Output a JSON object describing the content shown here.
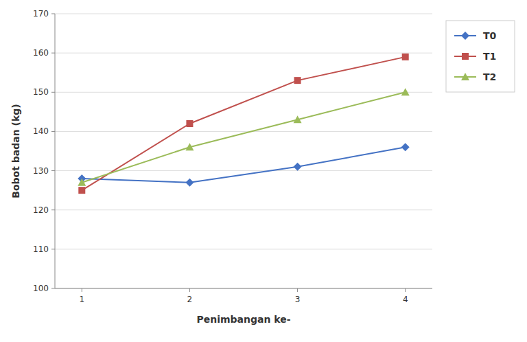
{
  "chart_data": {
    "type": "line",
    "xlabel": "Penimbangan ke-",
    "ylabel": "Bobot badan (kg)",
    "x": [
      1,
      2,
      3,
      4
    ],
    "series": [
      {
        "name": "T0",
        "color": "#4472C4",
        "marker": "diamond",
        "values": [
          128,
          127,
          131,
          136
        ]
      },
      {
        "name": "T1",
        "color": "#C0504D",
        "marker": "square",
        "values": [
          125,
          142,
          153,
          159
        ]
      },
      {
        "name": "T2",
        "color": "#9BBB59",
        "marker": "triangle",
        "values": [
          127,
          136,
          143,
          150
        ]
      }
    ],
    "xlim": [
      0.75,
      4.25
    ],
    "ylim": [
      100,
      170
    ],
    "xticks": [
      1,
      2,
      3,
      4
    ],
    "yticks": [
      100,
      110,
      120,
      130,
      140,
      150,
      160,
      170
    ],
    "grid": true,
    "legend": "right"
  }
}
